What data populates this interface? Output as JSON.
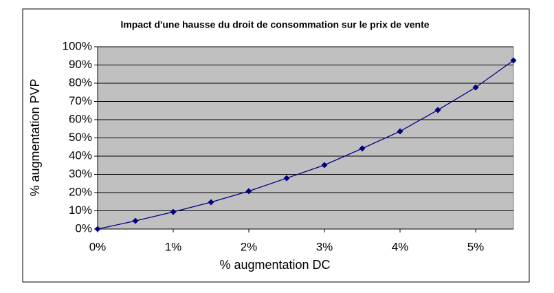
{
  "chart_data": {
    "type": "line",
    "title": "Impact d'une hausse du droit de consommation sur le prix de vente",
    "x_label": "% augmentation DC",
    "y_label": "% augmentation PVP",
    "x": [
      0,
      0.5,
      1,
      1.5,
      2,
      2.5,
      3,
      3.5,
      4,
      4.5,
      5,
      5.5
    ],
    "series": [
      {
        "color": "#000080",
        "values": [
          0,
          4.5,
          9.4,
          14.7,
          20.8,
          27.9,
          35.1,
          44.2,
          53.6,
          65.3,
          77.7,
          92.5
        ]
      }
    ],
    "xlim": [
      0,
      5.5
    ],
    "xticks": [
      {
        "value": 0,
        "label": "0%"
      },
      {
        "value": 1,
        "label": "1%"
      },
      {
        "value": 2,
        "label": "2%"
      },
      {
        "value": 3,
        "label": "3%"
      },
      {
        "value": 4,
        "label": "4%"
      },
      {
        "value": 5,
        "label": "5%"
      }
    ],
    "ylim": [
      0,
      100
    ],
    "yticks": [
      {
        "value": 0,
        "label": "0%"
      },
      {
        "value": 10,
        "label": "10%"
      },
      {
        "value": 20,
        "label": "20%"
      },
      {
        "value": 30,
        "label": "30%"
      },
      {
        "value": 40,
        "label": "40%"
      },
      {
        "value": 50,
        "label": "50%"
      },
      {
        "value": 60,
        "label": "60%"
      },
      {
        "value": 70,
        "label": "70%"
      },
      {
        "value": 80,
        "label": "80%"
      },
      {
        "value": 90,
        "label": "90%"
      },
      {
        "value": 100,
        "label": "100%"
      }
    ],
    "grid": true,
    "plot_background": "#c0c0c0"
  }
}
